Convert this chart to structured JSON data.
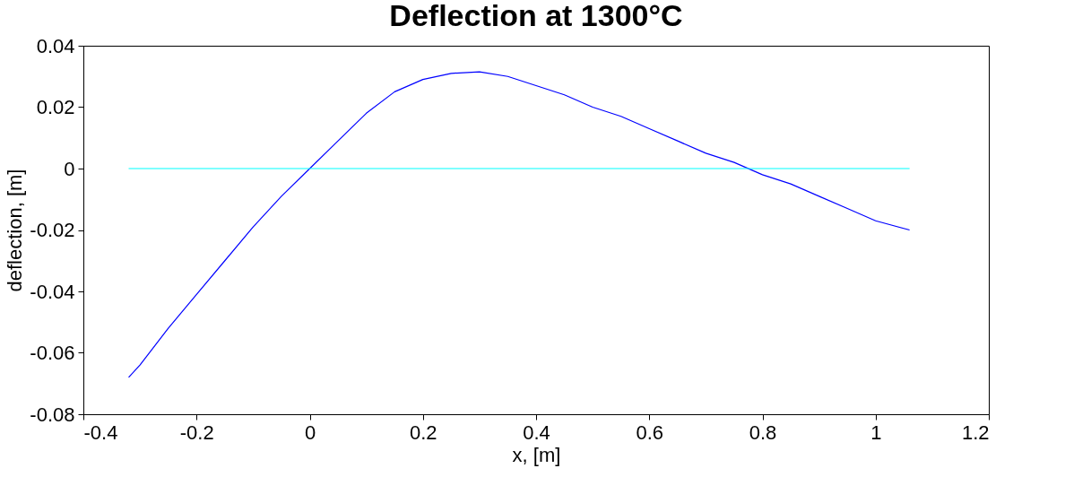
{
  "chart_data": {
    "type": "line",
    "title": "Deflection at 1300°C",
    "xlabel": "x, [m]",
    "ylabel": "deflection, [m]",
    "xlim": [
      -0.4,
      1.2
    ],
    "xticks": [
      -0.4,
      -0.2,
      0,
      0.2,
      0.4,
      0.6,
      0.8,
      {
        "value": 1,
        "label": "1"
      },
      1.2
    ],
    "ylim": [
      -0.08,
      0.04
    ],
    "yticks": [
      -0.08,
      -0.06,
      -0.04,
      -0.02,
      0,
      0.02,
      0.04
    ],
    "grid": false,
    "legend": false,
    "marker": "none",
    "line_style": "solid",
    "series": [
      {
        "color": "#0000ff",
        "x": [
          -0.32,
          -0.3,
          -0.25,
          -0.2,
          -0.15,
          -0.1,
          -0.05,
          0,
          0.05,
          0.1,
          0.15,
          0.2,
          0.25,
          0.3,
          0.35,
          0.4,
          0.45,
          0.5,
          0.55,
          0.6,
          0.65,
          0.7,
          0.75,
          0.8,
          0.85,
          0.9,
          0.95,
          1.0,
          1.06
        ],
        "values": [
          -0.068,
          -0.064,
          -0.052,
          -0.041,
          -0.03,
          -0.019,
          -0.009,
          0.0,
          0.009,
          0.018,
          0.025,
          0.029,
          0.031,
          0.0315,
          0.03,
          0.027,
          0.024,
          0.02,
          0.017,
          0.013,
          0.009,
          0.005,
          0.002,
          -0.002,
          -0.005,
          -0.009,
          -0.013,
          -0.017,
          -0.02
        ]
      },
      {
        "color": "#00ffff",
        "x": [
          -0.32,
          1.06
        ],
        "values": [
          0,
          0
        ]
      }
    ]
  }
}
